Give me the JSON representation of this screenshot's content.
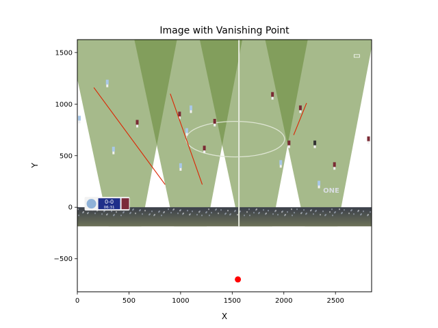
{
  "chart_data": {
    "type": "scatter",
    "title": "Image with Vanishing Point",
    "xlabel": "X",
    "ylabel": "Y",
    "xlim": [
      0,
      2850
    ],
    "ylim": [
      1625,
      -820
    ],
    "y_inverted": true,
    "x_ticks": [
      0,
      500,
      1000,
      1500,
      2000,
      2500
    ],
    "y_ticks": [
      -500,
      0,
      500,
      1000,
      1500
    ],
    "y_tick_labels": [
      "−500",
      "0",
      "500",
      "1000",
      "1500"
    ],
    "background_image": {
      "description": "football broadcast frame (pitch, players, scoreboard)",
      "extent": {
        "x": [
          0,
          2850
        ],
        "y": [
          0,
          1625
        ]
      },
      "scoreboard_text": "0-0",
      "clock_text": "06:31",
      "broadcaster_text": "ONE"
    },
    "vanishing_point": {
      "x": 1555,
      "y": -700,
      "color": "#ff0000"
    },
    "lines": [
      {
        "x": [
          160,
          850
        ],
        "y": [
          1160,
          220
        ],
        "color": "#dd2200"
      },
      {
        "x": [
          900,
          1210
        ],
        "y": [
          1100,
          220
        ],
        "color": "#dd2200"
      },
      {
        "x": [
          2095,
          2220
        ],
        "y": [
          700,
          1010
        ],
        "color": "#dd2200"
      }
    ],
    "grid": false,
    "legend": "none"
  }
}
